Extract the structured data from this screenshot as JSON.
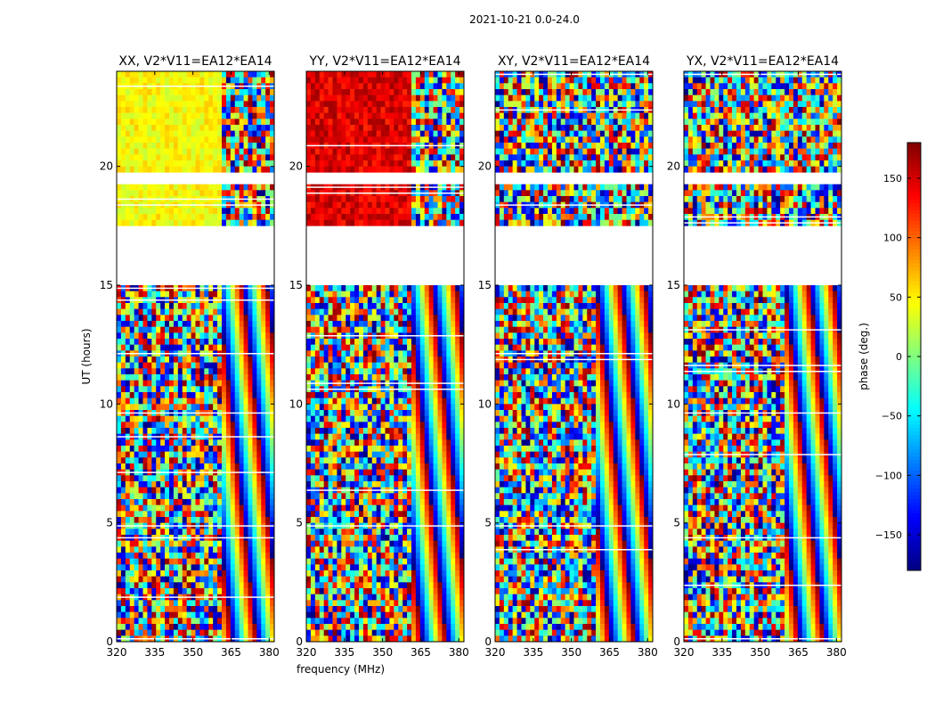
{
  "suptitle": "2021-10-21 0.0-24.0",
  "chart_data": {
    "type": "heatmap",
    "title": "2021-10-21 0.0-24.0",
    "xlabel": "frequency (MHz)",
    "ylabel": "UT (hours)",
    "xlim": [
      320,
      382
    ],
    "ylim": [
      0,
      24
    ],
    "xticks": [
      320,
      335,
      350,
      365,
      380
    ],
    "yticks": [
      0,
      5,
      10,
      15,
      20
    ],
    "colorbar": {
      "label": "phase (deg.)",
      "range": [
        -180,
        180
      ],
      "ticks": [
        150,
        100,
        50,
        0,
        -50,
        -100,
        -150
      ],
      "tick_labels": [
        "150",
        "100",
        "50",
        "0",
        "−50",
        "−100",
        "−150"
      ],
      "colormap": [
        "#00007f",
        "#0000ff",
        "#007fff",
        "#00ffff",
        "#7fff7f",
        "#ffff00",
        "#ff7f00",
        "#ff0000",
        "#7f0000"
      ]
    },
    "flagged_ut_ranges": [
      [
        15.5,
        17.6
      ],
      [
        19.2,
        19.7
      ],
      [
        15.1,
        15.4
      ]
    ],
    "panels": [
      {
        "title": "XX, V2*V11=EA12*EA14",
        "base_phase_deg": 45,
        "noise_deg": 20,
        "fringe_start_mhz": 362
      },
      {
        "title": "YY, V2*V11=EA12*EA14",
        "base_phase_deg": 145,
        "noise_deg": 25,
        "fringe_start_mhz": 362
      },
      {
        "title": "XY, V2*V11=EA12*EA14",
        "base_phase_deg": 0,
        "noise_deg": 180,
        "fringe_start_mhz": 360
      },
      {
        "title": "YX, V2*V11=EA12*EA14",
        "base_phase_deg": 0,
        "noise_deg": 180,
        "fringe_start_mhz": 360
      }
    ]
  }
}
